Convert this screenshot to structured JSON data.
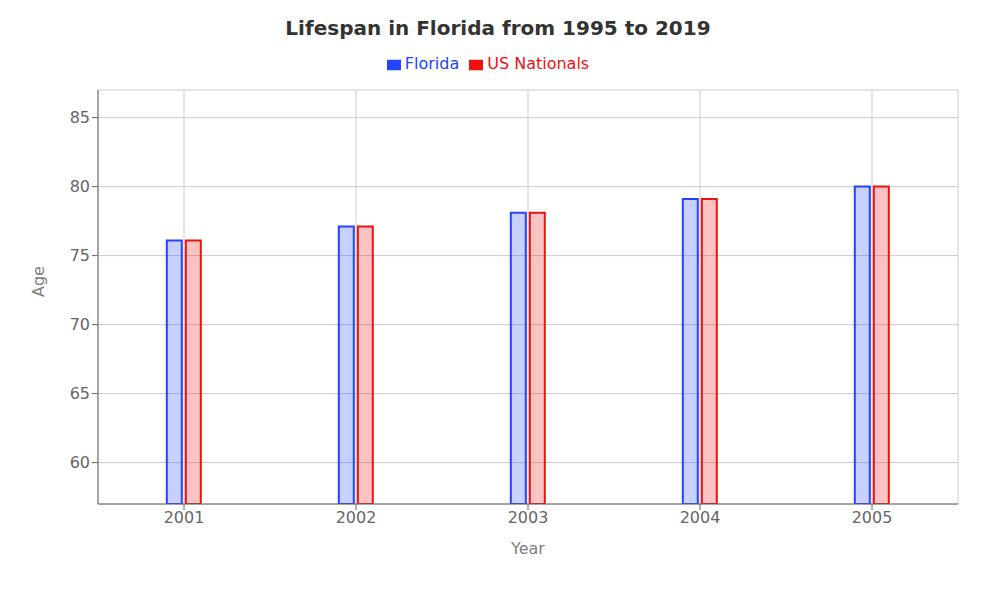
{
  "chart_data": {
    "type": "bar",
    "title": "Lifespan in Florida from 1995 to 2019",
    "x_label": "Year",
    "y_label": "Age",
    "categories": [
      "2001",
      "2002",
      "2003",
      "2004",
      "2005"
    ],
    "series": [
      {
        "name": "Florida",
        "color": "#2244ff",
        "values": [
          76.1,
          77.1,
          78.1,
          79.1,
          80.0
        ]
      },
      {
        "name": "US Nationals",
        "color": "#ee1111",
        "values": [
          76.1,
          77.1,
          78.1,
          79.1,
          80.0
        ]
      }
    ],
    "ylim": [
      57,
      87
    ],
    "yticks": [
      60,
      65,
      70,
      75,
      80,
      85
    ],
    "grid": true,
    "legend": "top"
  }
}
